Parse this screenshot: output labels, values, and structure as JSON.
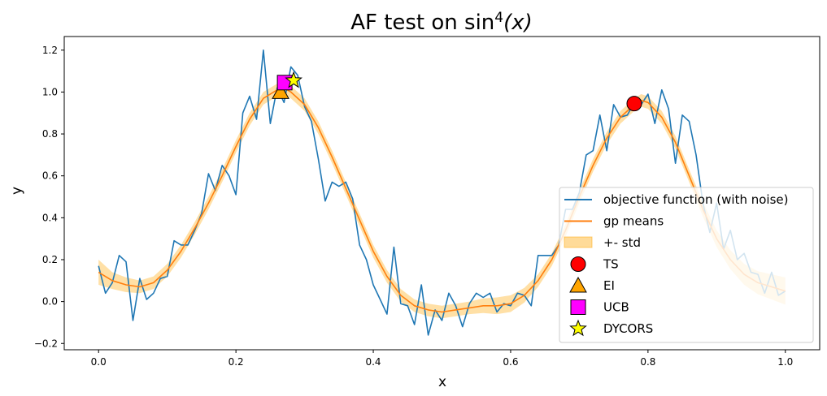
{
  "chart_data": {
    "type": "line",
    "title": "AF test on sin",
    "title_sup": "4",
    "title_arg": "(x)",
    "xlabel": "x",
    "ylabel": "y",
    "xlim": [
      -0.05,
      1.05
    ],
    "ylim": [
      -0.23,
      1.265
    ],
    "xticks": [
      0.0,
      0.2,
      0.4,
      0.6,
      0.8,
      1.0
    ],
    "xtick_labels": [
      "0.0",
      "0.2",
      "0.4",
      "0.6",
      "0.8",
      "1.0"
    ],
    "yticks": [
      -0.2,
      0.0,
      0.2,
      0.4,
      0.6,
      0.8,
      1.0,
      1.2
    ],
    "ytick_labels": [
      "−0.2",
      "0.0",
      "0.2",
      "0.4",
      "0.6",
      "0.8",
      "1.0",
      "1.2"
    ],
    "grid": false,
    "legend_position": "lower-right",
    "series": [
      {
        "name": "objective function (with noise)",
        "kind": "line",
        "color": "#1f77b4",
        "x": [
          0.0,
          0.01,
          0.02,
          0.03,
          0.04,
          0.05,
          0.06,
          0.07,
          0.08,
          0.09,
          0.1,
          0.11,
          0.12,
          0.13,
          0.14,
          0.15,
          0.16,
          0.17,
          0.18,
          0.19,
          0.2,
          0.21,
          0.22,
          0.23,
          0.24,
          0.25,
          0.26,
          0.27,
          0.28,
          0.29,
          0.3,
          0.31,
          0.32,
          0.33,
          0.34,
          0.35,
          0.36,
          0.37,
          0.38,
          0.39,
          0.4,
          0.41,
          0.42,
          0.43,
          0.44,
          0.45,
          0.46,
          0.47,
          0.48,
          0.49,
          0.5,
          0.51,
          0.52,
          0.53,
          0.54,
          0.55,
          0.56,
          0.57,
          0.58,
          0.59,
          0.6,
          0.61,
          0.62,
          0.63,
          0.64,
          0.65,
          0.66,
          0.67,
          0.68,
          0.69,
          0.7,
          0.71,
          0.72,
          0.73,
          0.74,
          0.75,
          0.76,
          0.77,
          0.78,
          0.79,
          0.8,
          0.81,
          0.82,
          0.83,
          0.84,
          0.85,
          0.86,
          0.87,
          0.88,
          0.89,
          0.9,
          0.91,
          0.92,
          0.93,
          0.94,
          0.95,
          0.96,
          0.97,
          0.98,
          0.99,
          1.0
        ],
        "y": [
          0.17,
          0.04,
          0.09,
          0.22,
          0.19,
          -0.09,
          0.11,
          0.01,
          0.04,
          0.11,
          0.12,
          0.29,
          0.27,
          0.27,
          0.34,
          0.42,
          0.61,
          0.53,
          0.65,
          0.6,
          0.51,
          0.9,
          0.98,
          0.87,
          1.2,
          0.85,
          1.02,
          0.95,
          1.12,
          1.08,
          0.93,
          0.86,
          0.68,
          0.48,
          0.57,
          0.55,
          0.57,
          0.49,
          0.27,
          0.2,
          0.08,
          0.01,
          -0.06,
          0.26,
          -0.01,
          -0.02,
          -0.11,
          0.08,
          -0.16,
          -0.04,
          -0.09,
          0.04,
          -0.02,
          -0.12,
          -0.01,
          0.04,
          0.02,
          0.04,
          -0.05,
          -0.01,
          -0.02,
          0.04,
          0.03,
          -0.02,
          0.22,
          0.22,
          0.22,
          0.27,
          0.44,
          0.44,
          0.52,
          0.7,
          0.72,
          0.89,
          0.72,
          0.94,
          0.88,
          0.89,
          0.95,
          0.94,
          0.99,
          0.85,
          1.01,
          0.92,
          0.66,
          0.89,
          0.86,
          0.7,
          0.47,
          0.33,
          0.47,
          0.25,
          0.34,
          0.2,
          0.23,
          0.14,
          0.13,
          0.04,
          0.14,
          0.03,
          0.05
        ]
      },
      {
        "name": "gp means",
        "kind": "line",
        "color": "#ff7f0e",
        "x": [
          0.0,
          0.02,
          0.04,
          0.06,
          0.08,
          0.1,
          0.12,
          0.14,
          0.16,
          0.18,
          0.2,
          0.22,
          0.24,
          0.26,
          0.27,
          0.28,
          0.3,
          0.32,
          0.34,
          0.36,
          0.38,
          0.4,
          0.42,
          0.44,
          0.46,
          0.48,
          0.5,
          0.52,
          0.54,
          0.56,
          0.58,
          0.6,
          0.62,
          0.64,
          0.66,
          0.68,
          0.7,
          0.72,
          0.74,
          0.76,
          0.78,
          0.79,
          0.8,
          0.82,
          0.84,
          0.86,
          0.88,
          0.9,
          0.92,
          0.94,
          0.96,
          0.98,
          1.0
        ],
        "y": [
          0.14,
          0.1,
          0.08,
          0.07,
          0.09,
          0.15,
          0.24,
          0.35,
          0.47,
          0.6,
          0.74,
          0.87,
          0.97,
          1.01,
          1.02,
          1.0,
          0.94,
          0.83,
          0.69,
          0.54,
          0.39,
          0.24,
          0.12,
          0.03,
          -0.02,
          -0.04,
          -0.05,
          -0.04,
          -0.03,
          -0.02,
          -0.02,
          -0.01,
          0.03,
          0.1,
          0.2,
          0.34,
          0.5,
          0.65,
          0.78,
          0.88,
          0.94,
          0.96,
          0.95,
          0.88,
          0.76,
          0.6,
          0.44,
          0.3,
          0.2,
          0.13,
          0.09,
          0.07,
          0.05
        ]
      },
      {
        "name": "+- std",
        "kind": "band",
        "color": "#ffa500",
        "std": [
          0.06,
          0.04,
          0.035,
          0.03,
          0.03,
          0.03,
          0.03,
          0.03,
          0.03,
          0.03,
          0.03,
          0.03,
          0.03,
          0.03,
          0.03,
          0.03,
          0.03,
          0.03,
          0.03,
          0.03,
          0.03,
          0.03,
          0.03,
          0.03,
          0.03,
          0.03,
          0.03,
          0.03,
          0.03,
          0.035,
          0.04,
          0.04,
          0.035,
          0.03,
          0.03,
          0.03,
          0.03,
          0.03,
          0.03,
          0.03,
          0.03,
          0.03,
          0.03,
          0.03,
          0.03,
          0.03,
          0.035,
          0.04,
          0.045,
          0.05,
          0.055,
          0.06,
          0.065
        ]
      }
    ],
    "markers": [
      {
        "name": "TS",
        "shape": "circle",
        "color": "#ff0000",
        "x": 0.78,
        "y": 0.945
      },
      {
        "name": "EI",
        "shape": "triangle",
        "color": "#ffa500",
        "x": 0.265,
        "y": 1.0
      },
      {
        "name": "UCB",
        "shape": "square",
        "color": "#ff00ff",
        "x": 0.271,
        "y": 1.045
      },
      {
        "name": "DYCORS",
        "shape": "star",
        "color": "#ffff00",
        "x": 0.284,
        "y": 1.055
      }
    ]
  }
}
